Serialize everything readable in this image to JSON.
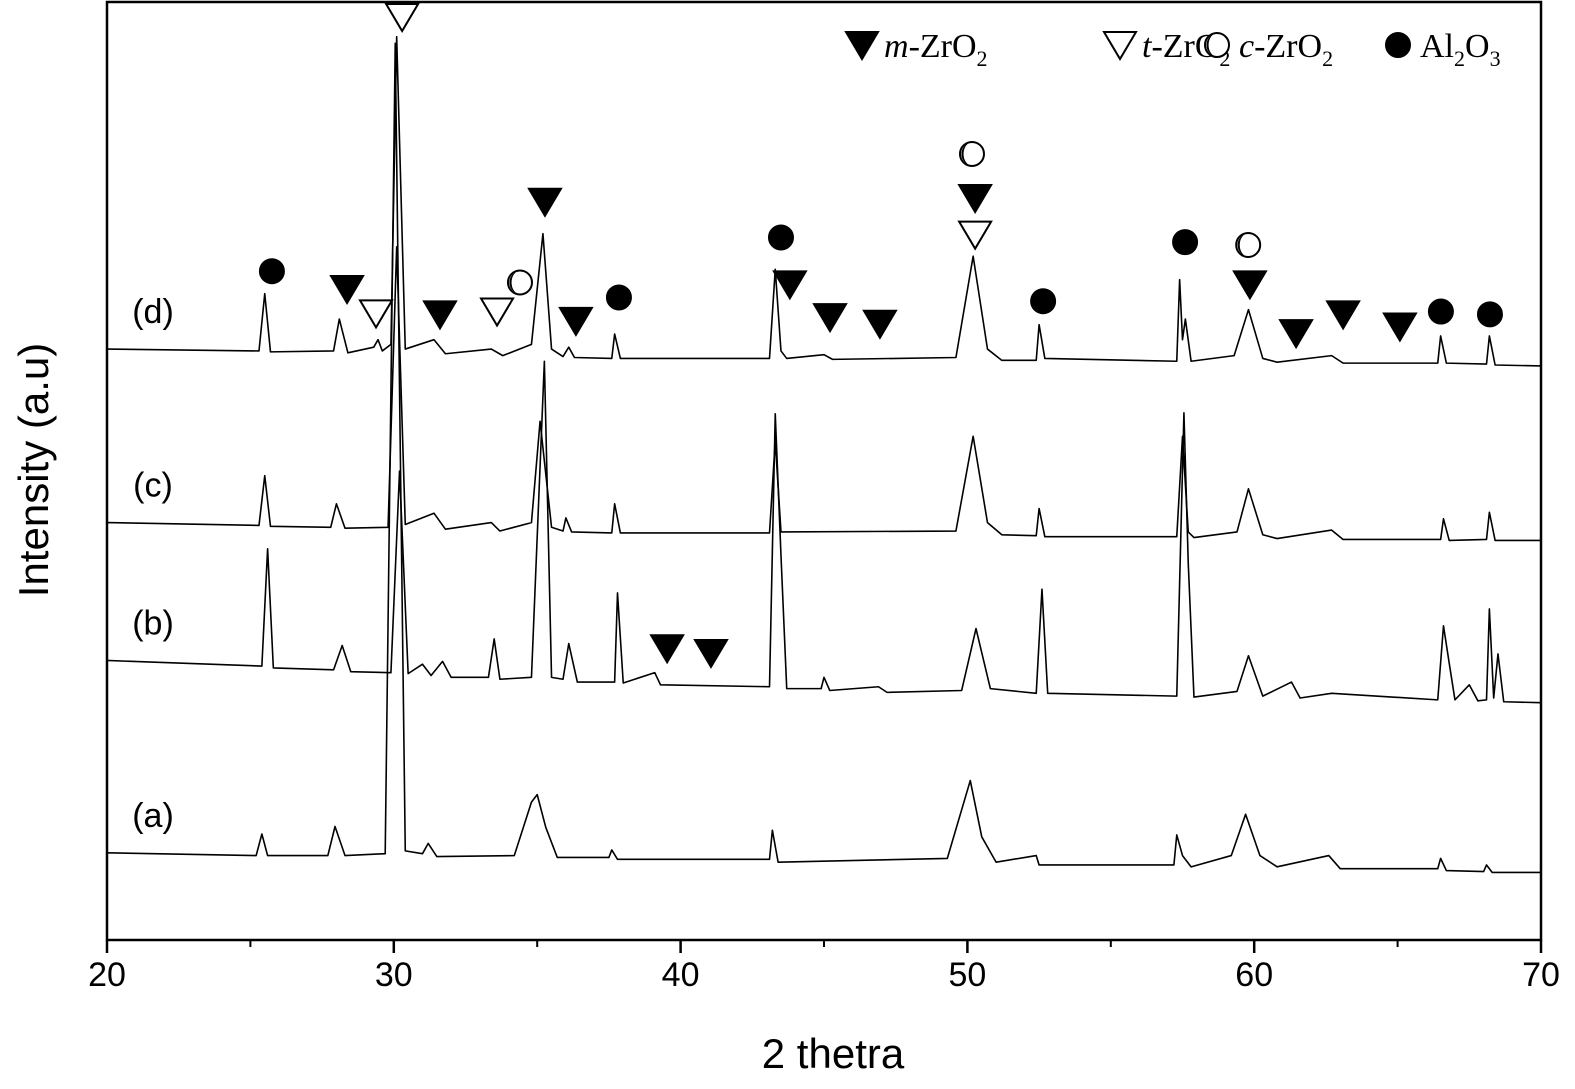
{
  "chart_data": {
    "type": "line",
    "x_label": "2 thetra",
    "y_label": "Intensity (a.u)",
    "xlim": [
      20,
      70
    ],
    "ylim": [
      0,
      100
    ],
    "xticks": [
      20,
      30,
      40,
      50,
      60,
      70
    ],
    "xminorticks": [
      25,
      35,
      45,
      55,
      65
    ],
    "grid": false,
    "series": [
      {
        "name": "(a)",
        "color": "#000000",
        "x": [
          20,
          25.2,
          25.4,
          25.6,
          27.7,
          27.95,
          28.3,
          29.7,
          30.05,
          30.4,
          31.0,
          31.2,
          31.5,
          34.2,
          34.8,
          35.0,
          35.3,
          35.7,
          37.5,
          37.6,
          37.8,
          43.1,
          43.2,
          43.4,
          49.3,
          50.1,
          50.5,
          51.0,
          52.4,
          52.5,
          57.2,
          57.3,
          57.5,
          57.8,
          59.2,
          59.7,
          60.2,
          60.8,
          62.6,
          63.0,
          66.4,
          66.5,
          66.7,
          68.0,
          68.1,
          68.3,
          70
        ],
        "values": [
          9.3,
          9.0,
          11.3,
          9.0,
          9.0,
          12.1,
          9.0,
          9.2,
          95.6,
          9.5,
          9.2,
          10.3,
          8.9,
          9.0,
          14.7,
          15.5,
          12,
          8.8,
          8.8,
          9.6,
          8.6,
          8.6,
          11.7,
          8.3,
          8.7,
          17.0,
          11,
          8.3,
          9.0,
          8.0,
          8.0,
          11.2,
          9.0,
          7.8,
          9,
          13.4,
          9,
          7.8,
          9.0,
          7.6,
          7.6,
          8.7,
          7.4,
          7.3,
          8.0,
          7.2,
          7.2
        ]
      },
      {
        "name": "(b)",
        "color": "#000000",
        "x": [
          20,
          25.4,
          25.6,
          25.8,
          27.9,
          28.2,
          28.5,
          29.9,
          30.2,
          30.5,
          31.0,
          31.3,
          31.7,
          32.0,
          33.3,
          33.5,
          33.7,
          34.8,
          35.25,
          35.5,
          35.9,
          36.1,
          36.4,
          37.7,
          37.8,
          38.0,
          39.1,
          39.3,
          43.1,
          43.3,
          43.5,
          43.7,
          44.9,
          45.0,
          45.2,
          46.9,
          47.2,
          49.8,
          50.3,
          50.8,
          52.4,
          52.6,
          52.8,
          57.3,
          57.55,
          57.7,
          57.9,
          59.4,
          59.8,
          60.3,
          61.3,
          61.6,
          62.7,
          66.4,
          66.6,
          66.8,
          67.0,
          67.5,
          67.8,
          68.1,
          68.2,
          68.35,
          68.5,
          68.7,
          70
        ],
        "values": [
          29.8,
          29.2,
          41.7,
          29.0,
          28.8,
          31.4,
          28.6,
          28.5,
          50.0,
          28.4,
          29.4,
          28.2,
          29.7,
          28.0,
          28.0,
          32.1,
          27.8,
          28.0,
          61.7,
          28.0,
          27.8,
          31.6,
          27.5,
          27.5,
          37.0,
          27.4,
          28.5,
          27.2,
          27.0,
          56.1,
          41.0,
          26.8,
          26.8,
          28.0,
          26.6,
          27.0,
          26.4,
          26.6,
          33.2,
          26.8,
          26.3,
          37.4,
          26.3,
          26.0,
          56.2,
          40.2,
          25.9,
          26.5,
          30.3,
          26.0,
          27.5,
          25.8,
          26.3,
          25.6,
          33.5,
          29.5,
          25.6,
          27.2,
          25.5,
          25.6,
          35.3,
          25.8,
          30.5,
          25.4,
          25.3
        ]
      },
      {
        "name": "(c)",
        "color": "#000000",
        "x": [
          20,
          25.3,
          25.5,
          25.7,
          27.8,
          28.0,
          28.3,
          29.8,
          30.1,
          30.4,
          31.4,
          31.8,
          33.4,
          33.7,
          34.8,
          35.1,
          35.5,
          35.9,
          36.0,
          36.2,
          37.6,
          37.7,
          37.9,
          43.1,
          43.3,
          43.5,
          49.6,
          50.2,
          50.7,
          51.2,
          52.4,
          52.5,
          52.7,
          57.3,
          57.5,
          57.7,
          57.9,
          59.4,
          59.8,
          60.3,
          60.8,
          62.7,
          63.1,
          66.5,
          66.6,
          66.8,
          68.1,
          68.2,
          68.4,
          70
        ],
        "values": [
          44.5,
          44.2,
          49.5,
          44.1,
          44.0,
          46.5,
          43.9,
          44.0,
          73.9,
          44.3,
          45.5,
          43.8,
          44.5,
          43.6,
          44.5,
          55.3,
          44,
          43.6,
          45.0,
          43.5,
          43.4,
          46.5,
          43.4,
          43.4,
          53.2,
          43.5,
          43.6,
          53.7,
          44.5,
          43.2,
          43.1,
          46.0,
          43.0,
          43.0,
          53.7,
          43.5,
          42.9,
          43.5,
          48.1,
          43.2,
          42.8,
          43.7,
          42.7,
          42.7,
          44.9,
          42.6,
          42.7,
          45.6,
          42.6,
          42.6
        ]
      },
      {
        "name": "(d)",
        "color": "#000000",
        "x": [
          20,
          25.3,
          25.5,
          25.7,
          27.9,
          28.1,
          28.4,
          29.3,
          29.45,
          29.6,
          29.9,
          30.1,
          30.4,
          31.4,
          31.8,
          33.4,
          33.8,
          34.8,
          35.2,
          35.5,
          35.9,
          36.1,
          36.3,
          37.6,
          37.7,
          37.9,
          43.1,
          43.3,
          43.5,
          43.7,
          45.0,
          45.3,
          49.6,
          50.2,
          50.7,
          51.2,
          52.4,
          52.5,
          52.7,
          57.3,
          57.4,
          57.5,
          57.6,
          57.8,
          59.3,
          59.8,
          60.3,
          60.8,
          62.7,
          63.1,
          66.4,
          66.5,
          66.7,
          68.1,
          68.2,
          68.4,
          70
        ],
        "values": [
          63.0,
          62.8,
          68.9,
          62.7,
          62.8,
          66.2,
          62.6,
          63.2,
          64.0,
          62.8,
          63.5,
          96.3,
          63.0,
          64.0,
          62.5,
          63.0,
          62.3,
          63.5,
          75.3,
          63,
          62.2,
          63.2,
          62.1,
          62.0,
          64.6,
          62.0,
          62.0,
          71.5,
          62.8,
          62.0,
          62.4,
          61.9,
          62.1,
          72.9,
          63.0,
          61.8,
          61.8,
          65.6,
          62.0,
          61.7,
          70.4,
          64.0,
          66.2,
          61.7,
          62.3,
          67.2,
          62.0,
          61.6,
          62.3,
          61.5,
          61.5,
          64.4,
          61.5,
          61.4,
          64.4,
          61.3,
          61.2
        ]
      }
    ],
    "markers": [
      {
        "label": [
          {
            "text": "m",
            "italic": true
          },
          {
            "text": "-ZrO"
          },
          {
            "text": "2",
            "sub": true
          }
        ],
        "shape": "triangle-down",
        "filled": true,
        "points": [
          [
            28.37,
            69.4
          ],
          [
            31.61,
            66.7
          ],
          [
            36.35,
            66.0
          ],
          [
            35.27,
            78.7
          ],
          [
            43.81,
            69.9
          ],
          [
            45.21,
            66.4
          ],
          [
            46.95,
            65.7
          ],
          [
            50.27,
            79.1
          ],
          [
            59.85,
            69.9
          ],
          [
            61.46,
            64.7
          ],
          [
            63.1,
            66.7
          ],
          [
            65.08,
            65.4
          ],
          [
            39.53,
            31.1
          ],
          [
            41.06,
            30.6
          ]
        ]
      },
      {
        "label": [
          {
            "text": "t",
            "italic": true
          },
          {
            "text": "-ZrO"
          },
          {
            "text": "2",
            "sub": true
          }
        ],
        "shape": "triangle-down",
        "filled": false,
        "points": [
          [
            30.29,
            98.4
          ],
          [
            29.38,
            66.8
          ],
          [
            33.6,
            67.0
          ],
          [
            50.27,
            75.2
          ]
        ]
      },
      {
        "label": [
          {
            "text": "c",
            "italic": true
          },
          {
            "text": "-ZrO"
          },
          {
            "text": "2",
            "sub": true
          }
        ],
        "shape": "half-circle",
        "filled": false,
        "points": [
          [
            34.4,
            70.1
          ],
          [
            50.16,
            83.8
          ],
          [
            59.79,
            74.1
          ]
        ]
      },
      {
        "label": [
          {
            "text": "Al"
          },
          {
            "text": "2",
            "sub": true
          },
          {
            "text": "O"
          },
          {
            "text": "3",
            "sub": true
          }
        ],
        "shape": "circle",
        "filled": true,
        "points": [
          [
            25.75,
            71.3
          ],
          [
            37.85,
            68.5
          ],
          [
            43.5,
            74.9
          ],
          [
            52.64,
            68.1
          ],
          [
            57.59,
            74.4
          ],
          [
            66.51,
            67.0
          ],
          [
            68.22,
            66.7
          ]
        ]
      }
    ]
  }
}
